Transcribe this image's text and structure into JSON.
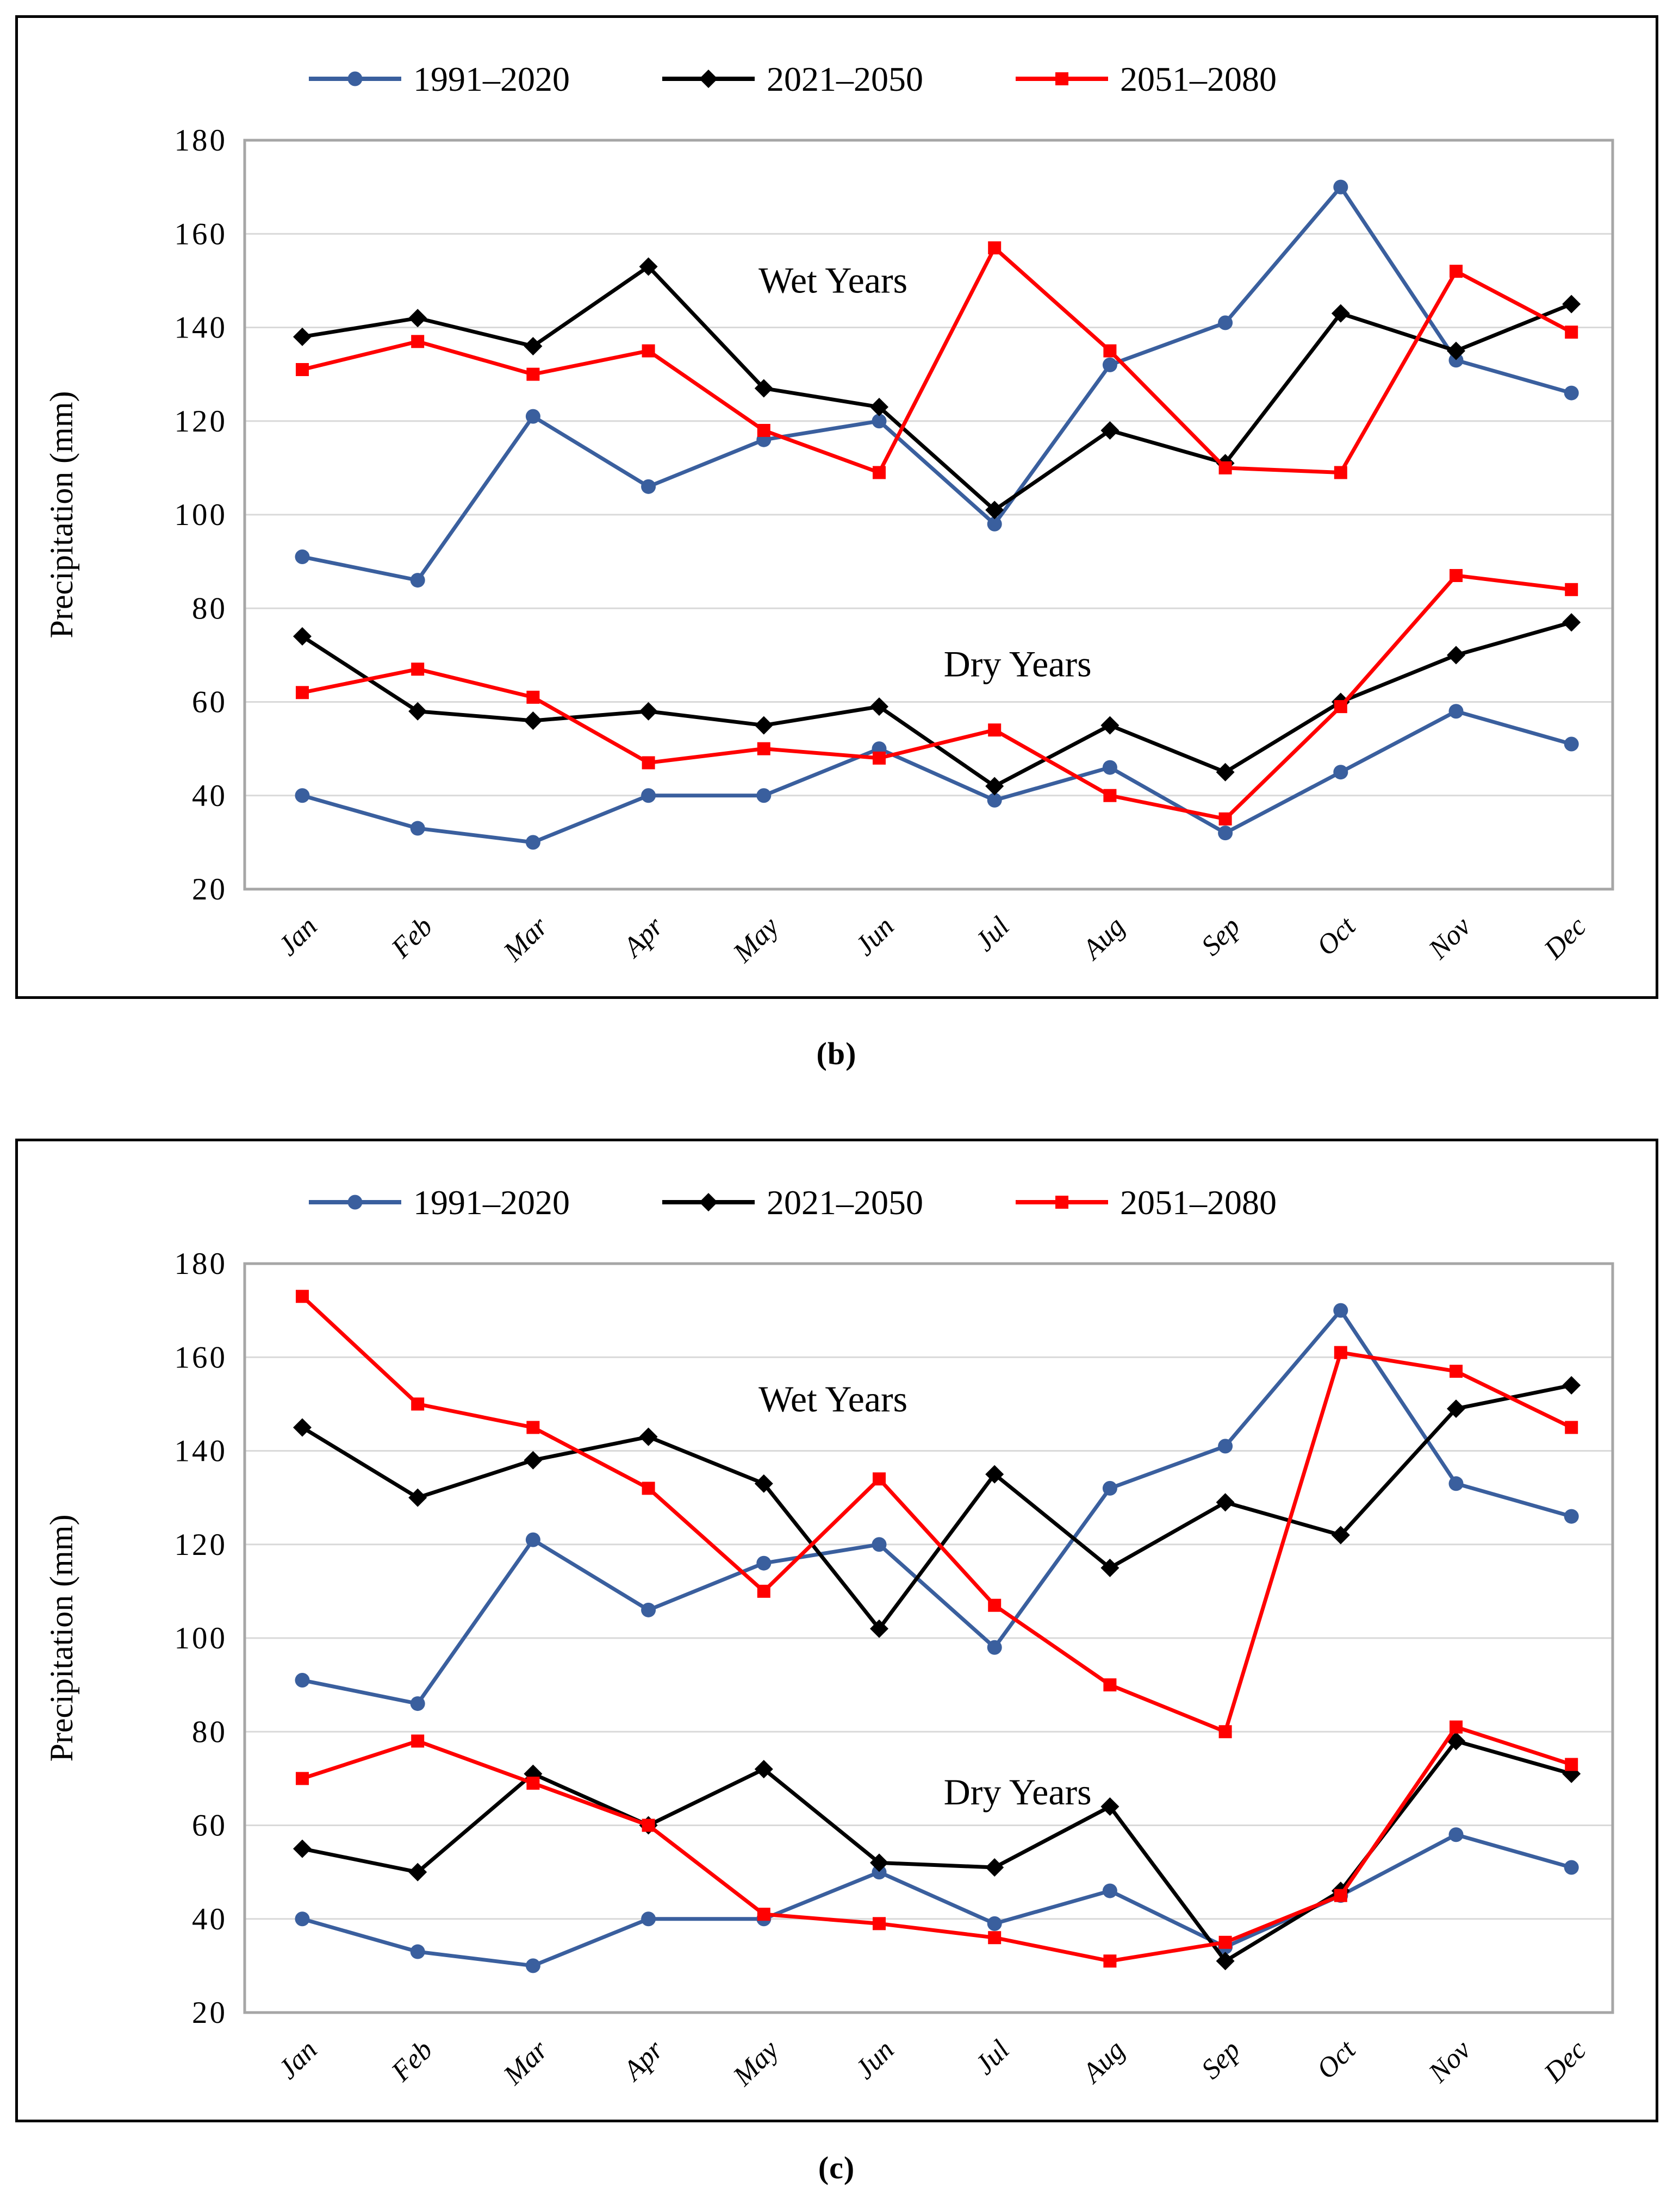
{
  "figure": {
    "captions": [
      "(b)",
      "(c)"
    ]
  },
  "styles": {
    "blue": "#3A5F9E",
    "black": "#000000",
    "red": "#FF0000",
    "gridline": "#D9D9D9",
    "plot_border": "#A6A6A6"
  },
  "chart_data": [
    {
      "type": "line",
      "caption": "(b)",
      "ylabel": "Precipitation  (mm)",
      "ylim": [
        20,
        180
      ],
      "ytick_step": 20,
      "grid": "horizontal",
      "legend_position": "top",
      "categories": [
        "Jan",
        "Feb",
        "Mar",
        "Apr",
        "May",
        "Jun",
        "Jul",
        "Aug",
        "Sep",
        "Oct",
        "Nov",
        "Dec"
      ],
      "legend": [
        "1991–2020",
        "2021–2050",
        "2051–2080"
      ],
      "annotations": [
        {
          "text": "Wet Years",
          "x": 4.6,
          "y": 150
        },
        {
          "text": "Dry Years",
          "x": 6.2,
          "y": 68
        }
      ],
      "series": [
        {
          "name": "1991–2020",
          "group": "wet",
          "marker": "circle",
          "color": "#3A5F9E",
          "values": [
            91,
            86,
            121,
            106,
            116,
            120,
            98,
            132,
            141,
            170,
            133,
            126
          ]
        },
        {
          "name": "2021–2050",
          "group": "wet",
          "marker": "diamond",
          "color": "#000000",
          "values": [
            138,
            142,
            136,
            153,
            127,
            123,
            101,
            118,
            111,
            143,
            135,
            145
          ]
        },
        {
          "name": "2051–2080",
          "group": "wet",
          "marker": "square",
          "color": "#FF0000",
          "values": [
            131,
            137,
            130,
            135,
            118,
            109,
            157,
            135,
            110,
            109,
            152,
            139
          ]
        },
        {
          "name": "1991–2020",
          "group": "dry",
          "marker": "circle",
          "color": "#3A5F9E",
          "values": [
            40,
            33,
            30,
            40,
            40,
            50,
            39,
            46,
            32,
            45,
            58,
            51
          ]
        },
        {
          "name": "2021–2050",
          "group": "dry",
          "marker": "diamond",
          "color": "#000000",
          "values": [
            74,
            58,
            56,
            58,
            55,
            59,
            42,
            55,
            45,
            60,
            70,
            77
          ]
        },
        {
          "name": "2051–2080",
          "group": "dry",
          "marker": "square",
          "color": "#FF0000",
          "values": [
            62,
            67,
            61,
            47,
            50,
            48,
            54,
            40,
            35,
            59,
            87,
            84
          ]
        }
      ]
    },
    {
      "type": "line",
      "caption": "(c)",
      "ylabel": "Precipitation  (mm)",
      "ylim": [
        20,
        180
      ],
      "ytick_step": 20,
      "grid": "horizontal",
      "legend_position": "top",
      "categories": [
        "Jan",
        "Feb",
        "Mar",
        "Apr",
        "May",
        "Jun",
        "Jul",
        "Aug",
        "Sep",
        "Oct",
        "Nov",
        "Dec"
      ],
      "legend": [
        "1991–2020",
        "2021–2050",
        "2051–2080"
      ],
      "annotations": [
        {
          "text": "Wet Years",
          "x": 4.6,
          "y": 151
        },
        {
          "text": "Dry Years",
          "x": 6.2,
          "y": 67
        }
      ],
      "series": [
        {
          "name": "1991–2020",
          "group": "wet",
          "marker": "circle",
          "color": "#3A5F9E",
          "values": [
            91,
            86,
            121,
            106,
            116,
            120,
            98,
            132,
            141,
            170,
            133,
            126
          ]
        },
        {
          "name": "2021–2050",
          "group": "wet",
          "marker": "diamond",
          "color": "#000000",
          "values": [
            145,
            130,
            138,
            143,
            133,
            102,
            135,
            115,
            129,
            122,
            149,
            154
          ]
        },
        {
          "name": "2051–2080",
          "group": "wet",
          "marker": "square",
          "color": "#FF0000",
          "values": [
            173,
            150,
            145,
            132,
            110,
            134,
            107,
            90,
            80,
            161,
            157,
            145
          ]
        },
        {
          "name": "1991–2020",
          "group": "dry",
          "marker": "circle",
          "color": "#3A5F9E",
          "values": [
            40,
            33,
            30,
            40,
            40,
            50,
            39,
            46,
            34,
            45,
            58,
            51
          ]
        },
        {
          "name": "2021–2050",
          "group": "dry",
          "marker": "diamond",
          "color": "#000000",
          "values": [
            55,
            50,
            71,
            60,
            72,
            52,
            51,
            64,
            31,
            46,
            78,
            71
          ]
        },
        {
          "name": "2051–2080",
          "group": "dry",
          "marker": "square",
          "color": "#FF0000",
          "values": [
            70,
            78,
            69,
            60,
            41,
            39,
            36,
            31,
            35,
            45,
            81,
            73
          ]
        }
      ]
    }
  ]
}
